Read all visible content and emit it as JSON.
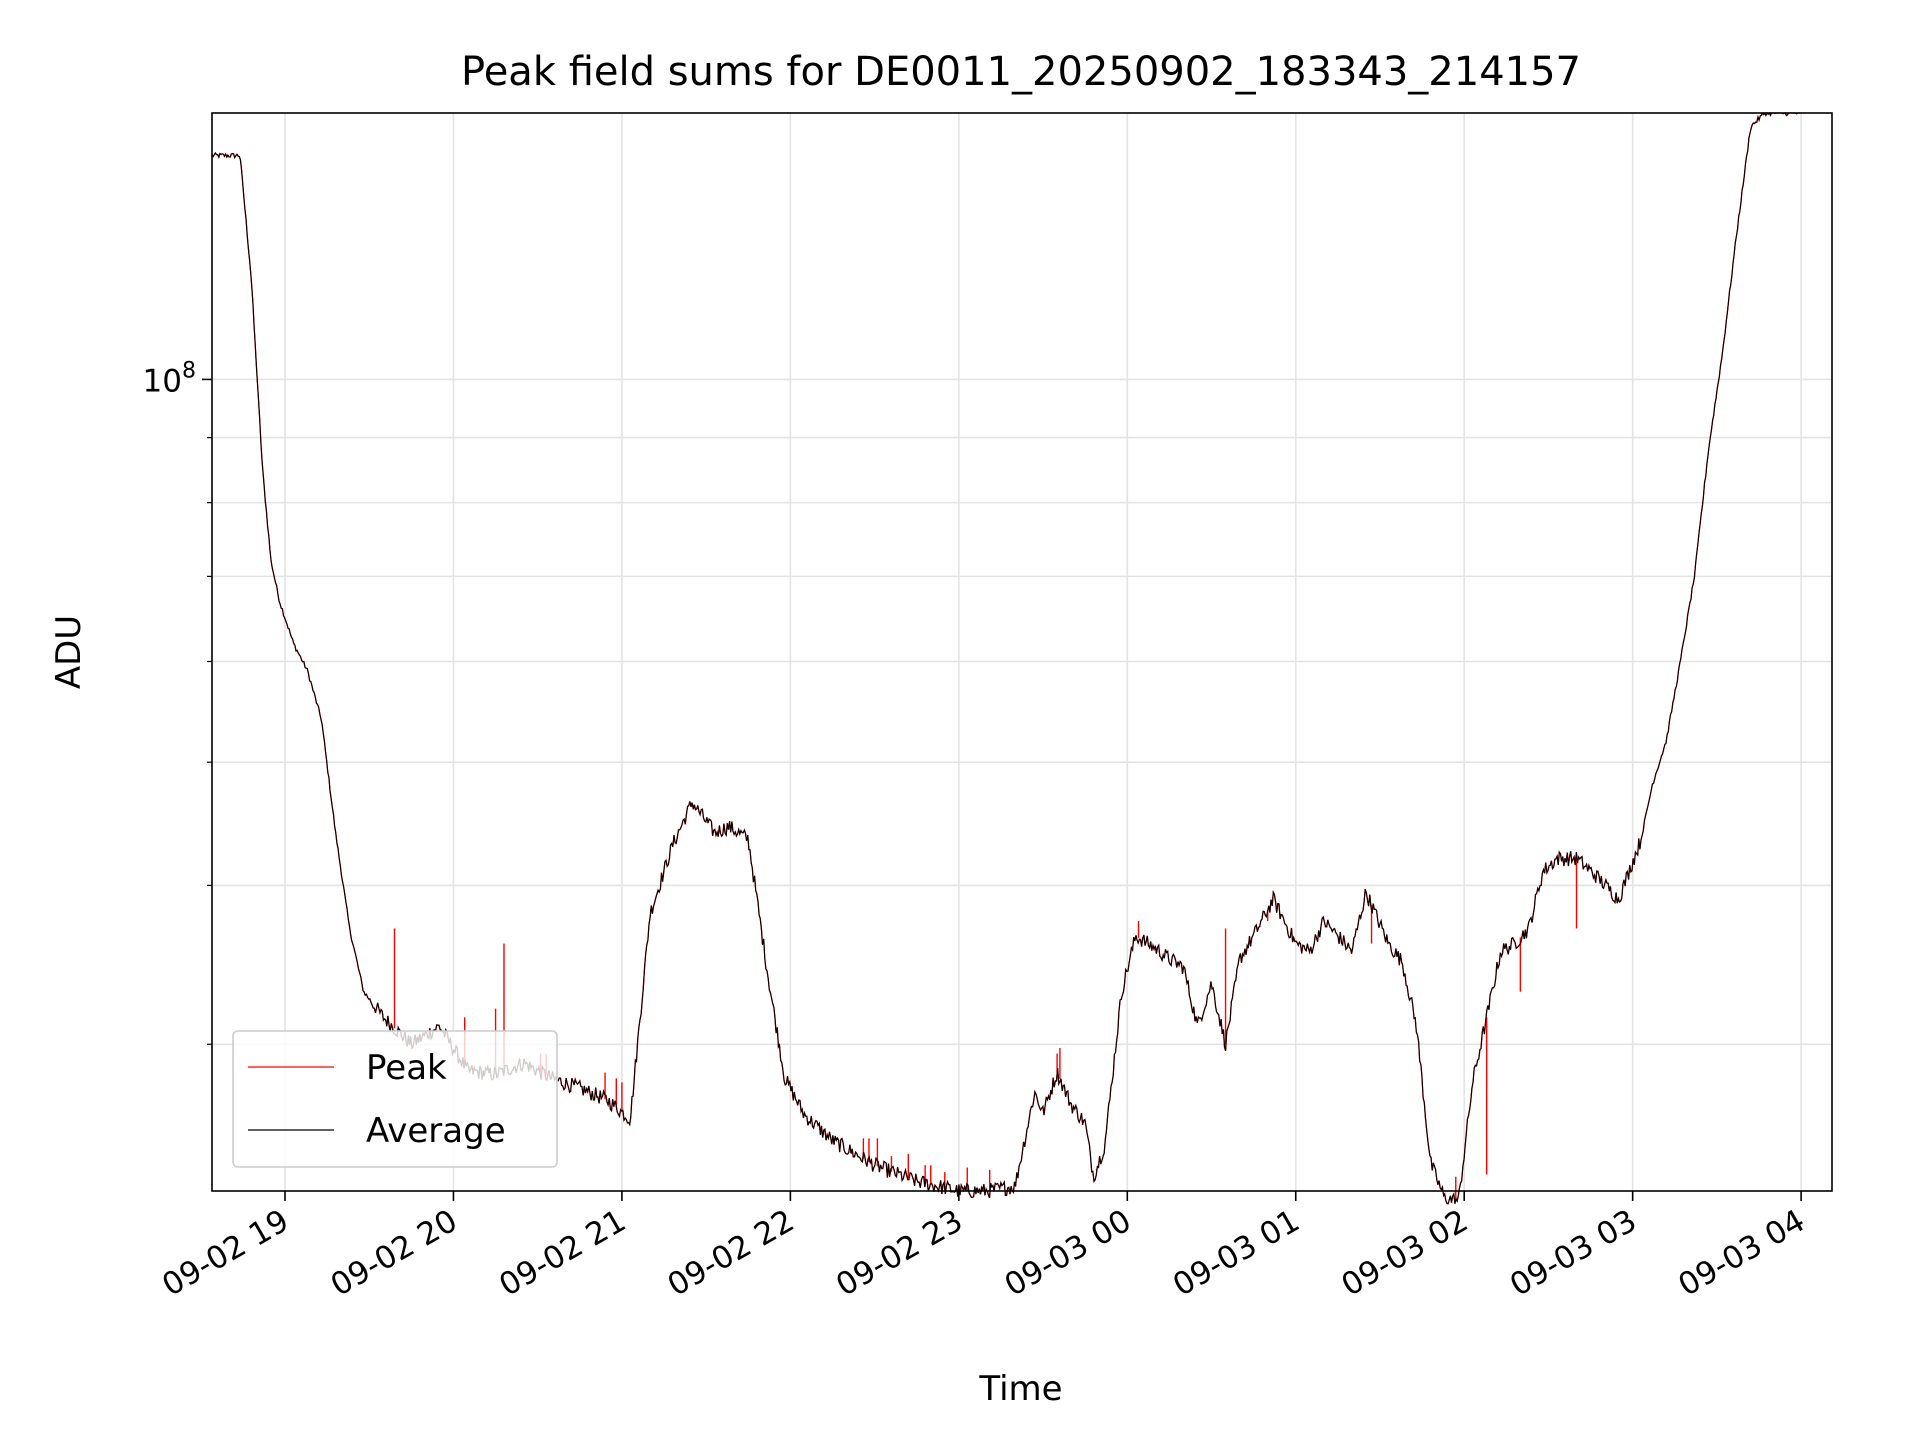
{
  "chart_data": {
    "type": "line",
    "title": "Peak field sums for DE0011_20250902_183343_214157",
    "xlabel": "Time",
    "ylabel": "ADU",
    "y_scale": "log",
    "ylim": [
      23000000,
      162000000
    ],
    "xlim": [
      "2025-09-02 18:34",
      "2025-09-03 04:11"
    ],
    "x_ticks": [
      "2025-09-02 19:00",
      "2025-09-02 20:00",
      "2025-09-02 21:00",
      "2025-09-02 22:00",
      "2025-09-02 23:00",
      "2025-09-03 00:00",
      "2025-09-03 01:00",
      "2025-09-03 02:00",
      "2025-09-03 03:00",
      "2025-09-03 04:00"
    ],
    "x_tick_labels": [
      "09-02 19",
      "09-02 20",
      "09-02 21",
      "09-02 22",
      "09-02 23",
      "09-03 00",
      "09-03 01",
      "09-03 02",
      "09-03 03",
      "09-03 04"
    ],
    "y_tick_label": {
      "base": "10",
      "exponent": "8",
      "value": 100000000
    },
    "y_minor_ticks": [
      30000000,
      40000000,
      50000000,
      60000000,
      70000000,
      80000000,
      90000000
    ],
    "grid": true,
    "legend": {
      "position": "lower-left",
      "entries": [
        "Peak",
        "Average"
      ]
    },
    "series": [
      {
        "name": "Average",
        "color": "#000000",
        "x": [
          "2025-09-02 18:34",
          "2025-09-02 18:44",
          "2025-09-02 18:48",
          "2025-09-02 18:52",
          "2025-09-02 18:55",
          "2025-09-02 18:58",
          "2025-09-02 19:03",
          "2025-09-02 19:08",
          "2025-09-02 19:13",
          "2025-09-02 19:18",
          "2025-09-02 19:23",
          "2025-09-02 19:28",
          "2025-09-02 19:35",
          "2025-09-02 19:45",
          "2025-09-02 19:55",
          "2025-09-02 20:05",
          "2025-09-02 20:15",
          "2025-09-02 20:25",
          "2025-09-02 20:35",
          "2025-09-02 20:45",
          "2025-09-02 20:55",
          "2025-09-02 21:03",
          "2025-09-02 21:10",
          "2025-09-02 21:18",
          "2025-09-02 21:25",
          "2025-09-02 21:33",
          "2025-09-02 21:38",
          "2025-09-02 21:45",
          "2025-09-02 21:52",
          "2025-09-02 21:58",
          "2025-09-02 22:05",
          "2025-09-02 22:15",
          "2025-09-02 22:30",
          "2025-09-02 22:45",
          "2025-09-02 23:00",
          "2025-09-02 23:10",
          "2025-09-02 23:20",
          "2025-09-02 23:27",
          "2025-09-02 23:30",
          "2025-09-02 23:35",
          "2025-09-02 23:40",
          "2025-09-02 23:45",
          "2025-09-02 23:48",
          "2025-09-02 23:52",
          "2025-09-02 23:58",
          "2025-09-03 00:03",
          "2025-09-03 00:10",
          "2025-09-03 00:15",
          "2025-09-03 00:20",
          "2025-09-03 00:25",
          "2025-09-03 00:30",
          "2025-09-03 00:35",
          "2025-09-03 00:40",
          "2025-09-03 00:45",
          "2025-09-03 00:52",
          "2025-09-03 01:00",
          "2025-09-03 01:05",
          "2025-09-03 01:10",
          "2025-09-03 01:15",
          "2025-09-03 01:20",
          "2025-09-03 01:25",
          "2025-09-03 01:33",
          "2025-09-03 01:38",
          "2025-09-03 01:43",
          "2025-09-03 01:48",
          "2025-09-03 01:53",
          "2025-09-03 01:58",
          "2025-09-03 02:03",
          "2025-09-03 02:08",
          "2025-09-03 02:13",
          "2025-09-03 02:18",
          "2025-09-03 02:23",
          "2025-09-03 02:28",
          "2025-09-03 02:33",
          "2025-09-03 02:40",
          "2025-09-03 02:48",
          "2025-09-03 02:55",
          "2025-09-03 03:03",
          "2025-09-03 03:07",
          "2025-09-03 03:12",
          "2025-09-03 03:17",
          "2025-09-03 03:22",
          "2025-09-03 03:27",
          "2025-09-03 03:32",
          "2025-09-03 03:37",
          "2025-09-03 03:42",
          "2025-09-03 03:47",
          "2025-09-03 03:52",
          "2025-09-03 03:57",
          "2025-09-03 04:00"
        ],
        "y": [
          150000000,
          150000000,
          120000000,
          85000000,
          72000000,
          67000000,
          62000000,
          59000000,
          54000000,
          44000000,
          37000000,
          33000000,
          31500000,
          30000000,
          31000000,
          28600000,
          28400000,
          29000000,
          28200000,
          27700000,
          27100000,
          26200000,
          38000000,
          43000000,
          46500000,
          44000000,
          44500000,
          43500000,
          34000000,
          28200000,
          26400000,
          25200000,
          24100000,
          23400000,
          23000000,
          23000000,
          23200000,
          27500000,
          26500000,
          28500000,
          26900000,
          26000000,
          23600000,
          25000000,
          33000000,
          36500000,
          35700000,
          35000000,
          34500000,
          31000000,
          33500000,
          30000000,
          35000000,
          36500000,
          39000000,
          36000000,
          35500000,
          37500000,
          36500000,
          35500000,
          39500000,
          36000000,
          34800000,
          31000000,
          24200000,
          22700000,
          22600000,
          28000000,
          31500000,
          35500000,
          36000000,
          37000000,
          41000000,
          42000000,
          42000000,
          40500000,
          39000000,
          43500000,
          48000000,
          52000000,
          60000000,
          70000000,
          88000000,
          105000000,
          130000000,
          158000000,
          162000000,
          162000000,
          162000000,
          162000000
        ]
      },
      {
        "name": "Peak",
        "color": "#ff0000",
        "spikes": [
          {
            "x": "2025-09-02 19:39",
            "y": 37000000
          },
          {
            "x": "2025-09-02 20:04",
            "y": 31500000
          },
          {
            "x": "2025-09-02 20:15",
            "y": 32000000
          },
          {
            "x": "2025-09-02 20:18",
            "y": 36000000
          },
          {
            "x": "2025-09-02 20:31",
            "y": 29500000
          },
          {
            "x": "2025-09-02 20:33",
            "y": 29500000
          },
          {
            "x": "2025-09-02 20:54",
            "y": 28500000
          },
          {
            "x": "2025-09-02 20:58",
            "y": 28200000
          },
          {
            "x": "2025-09-02 21:00",
            "y": 28000000
          },
          {
            "x": "2025-09-02 22:26",
            "y": 25300000
          },
          {
            "x": "2025-09-02 22:28",
            "y": 25300000
          },
          {
            "x": "2025-09-02 22:31",
            "y": 25300000
          },
          {
            "x": "2025-09-02 22:36",
            "y": 24500000
          },
          {
            "x": "2025-09-02 22:42",
            "y": 24600000
          },
          {
            "x": "2025-09-02 22:48",
            "y": 24100000
          },
          {
            "x": "2025-09-02 22:50",
            "y": 24100000
          },
          {
            "x": "2025-09-02 22:55",
            "y": 23800000
          },
          {
            "x": "2025-09-02 23:03",
            "y": 24000000
          },
          {
            "x": "2025-09-02 23:11",
            "y": 23900000
          },
          {
            "x": "2025-09-02 23:35",
            "y": 29500000
          },
          {
            "x": "2025-09-02 23:36",
            "y": 29800000
          },
          {
            "x": "2025-09-02 23:49",
            "y": 23900000
          },
          {
            "x": "2025-09-03 00:04",
            "y": 37500000
          },
          {
            "x": "2025-09-03 00:35",
            "y": 37000000
          },
          {
            "x": "2025-09-03 00:50",
            "y": 37500000
          },
          {
            "x": "2025-09-03 01:27",
            "y": 36000000
          },
          {
            "x": "2025-09-03 01:57",
            "y": 23600000
          },
          {
            "x": "2025-09-03 02:08",
            "y": 23700000
          },
          {
            "x": "2025-09-03 02:20",
            "y": 33000000
          },
          {
            "x": "2025-09-03 02:40",
            "y": 37000000
          }
        ]
      }
    ]
  }
}
